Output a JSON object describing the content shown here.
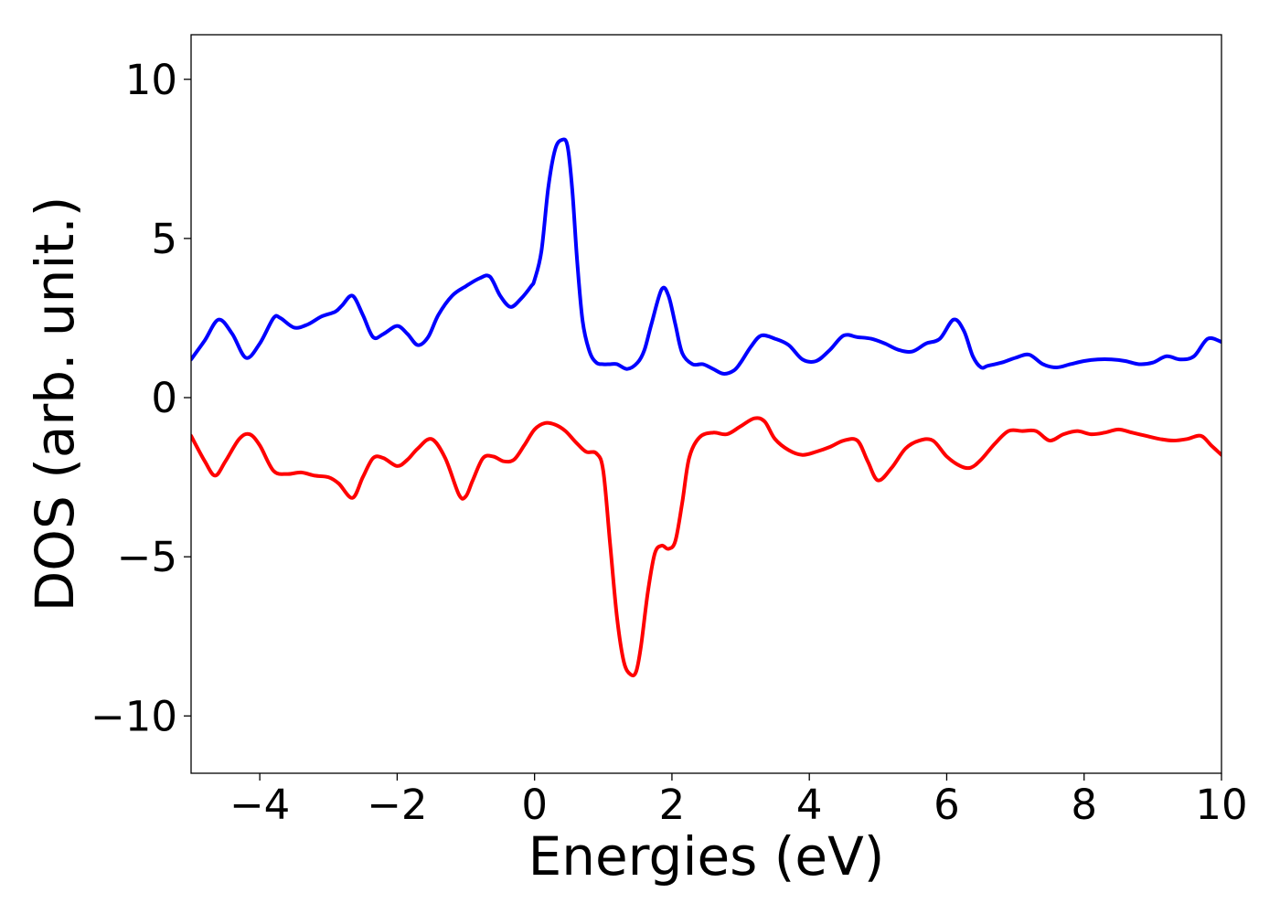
{
  "chart_data": {
    "type": "line",
    "title": "",
    "xlabel": "Energies (eV)",
    "ylabel": "DOS (arb. unit.)",
    "xlim": [
      -5,
      10
    ],
    "ylim": [
      -11.8,
      11.4
    ],
    "grid": false,
    "xticks": [
      -4,
      -2,
      0,
      2,
      4,
      6,
      8,
      10
    ],
    "xtick_labels": [
      "−4",
      "−2",
      "0",
      "2",
      "4",
      "6",
      "8",
      "10"
    ],
    "yticks": [
      10,
      5,
      0,
      -5,
      -10
    ],
    "ytick_labels": [
      "10",
      "5",
      "0",
      "−5",
      "−10"
    ],
    "series": [
      {
        "color": "#0000ff",
        "x": [
          -5.0,
          -4.8,
          -4.6,
          -4.4,
          -4.2,
          -4.0,
          -3.8,
          -3.7,
          -3.5,
          -3.3,
          -3.1,
          -2.9,
          -2.8,
          -2.65,
          -2.5,
          -2.35,
          -2.2,
          -2.0,
          -1.85,
          -1.7,
          -1.55,
          -1.4,
          -1.2,
          -1.0,
          -0.8,
          -0.65,
          -0.5,
          -0.35,
          -0.2,
          -0.05,
          0.0,
          0.1,
          0.2,
          0.3,
          0.4,
          0.48,
          0.55,
          0.62,
          0.7,
          0.8,
          0.9,
          1.0,
          1.1,
          1.2,
          1.35,
          1.5,
          1.6,
          1.7,
          1.85,
          1.95,
          2.05,
          2.15,
          2.3,
          2.45,
          2.6,
          2.75,
          2.9,
          3.0,
          3.15,
          3.3,
          3.5,
          3.7,
          3.9,
          4.1,
          4.3,
          4.5,
          4.7,
          4.9,
          5.1,
          5.3,
          5.5,
          5.7,
          5.9,
          6.1,
          6.25,
          6.38,
          6.5,
          6.6,
          6.8,
          7.0,
          7.2,
          7.4,
          7.6,
          7.8,
          8.0,
          8.2,
          8.4,
          8.6,
          8.8,
          9.0,
          9.2,
          9.4,
          9.6,
          9.8,
          10.0
        ],
        "y": [
          1.2,
          1.8,
          2.45,
          2.0,
          1.25,
          1.7,
          2.5,
          2.5,
          2.2,
          2.3,
          2.55,
          2.7,
          2.9,
          3.2,
          2.6,
          1.9,
          2.0,
          2.25,
          2.0,
          1.65,
          1.9,
          2.6,
          3.2,
          3.5,
          3.75,
          3.8,
          3.2,
          2.85,
          3.1,
          3.5,
          3.7,
          4.6,
          6.6,
          7.8,
          8.1,
          7.9,
          6.5,
          4.3,
          2.4,
          1.45,
          1.1,
          1.05,
          1.05,
          1.05,
          0.9,
          1.1,
          1.5,
          2.3,
          3.4,
          3.2,
          2.3,
          1.4,
          1.05,
          1.05,
          0.9,
          0.75,
          0.85,
          1.1,
          1.6,
          1.95,
          1.85,
          1.65,
          1.2,
          1.15,
          1.5,
          1.95,
          1.9,
          1.85,
          1.7,
          1.5,
          1.45,
          1.7,
          1.85,
          2.45,
          2.1,
          1.3,
          0.95,
          1.0,
          1.1,
          1.25,
          1.35,
          1.05,
          0.95,
          1.05,
          1.15,
          1.2,
          1.2,
          1.15,
          1.05,
          1.1,
          1.3,
          1.2,
          1.3,
          1.85,
          1.75
        ]
      },
      {
        "color": "#ff0000",
        "x": [
          -5.0,
          -4.8,
          -4.65,
          -4.5,
          -4.3,
          -4.15,
          -4.0,
          -3.8,
          -3.6,
          -3.4,
          -3.2,
          -3.0,
          -2.85,
          -2.65,
          -2.5,
          -2.35,
          -2.2,
          -2.0,
          -1.85,
          -1.7,
          -1.5,
          -1.3,
          -1.1,
          -1.0,
          -0.9,
          -0.75,
          -0.6,
          -0.45,
          -0.3,
          -0.15,
          0.0,
          0.15,
          0.3,
          0.45,
          0.6,
          0.75,
          0.9,
          1.0,
          1.1,
          1.2,
          1.3,
          1.4,
          1.48,
          1.55,
          1.65,
          1.75,
          1.85,
          1.95,
          2.05,
          2.15,
          2.25,
          2.4,
          2.6,
          2.8,
          3.0,
          3.2,
          3.35,
          3.5,
          3.7,
          3.9,
          4.1,
          4.3,
          4.5,
          4.7,
          4.85,
          5.0,
          5.2,
          5.4,
          5.6,
          5.8,
          6.0,
          6.2,
          6.35,
          6.5,
          6.7,
          6.9,
          7.1,
          7.3,
          7.5,
          7.7,
          7.9,
          8.1,
          8.3,
          8.5,
          8.7,
          8.9,
          9.1,
          9.3,
          9.5,
          9.7,
          9.85,
          10.0
        ],
        "y": [
          -1.2,
          -2.0,
          -2.45,
          -2.0,
          -1.3,
          -1.15,
          -1.5,
          -2.3,
          -2.4,
          -2.35,
          -2.45,
          -2.5,
          -2.7,
          -3.15,
          -2.5,
          -1.9,
          -1.9,
          -2.15,
          -1.95,
          -1.6,
          -1.3,
          -1.9,
          -3.05,
          -3.1,
          -2.6,
          -1.9,
          -1.85,
          -2.0,
          -1.95,
          -1.5,
          -1.0,
          -0.8,
          -0.85,
          -1.05,
          -1.4,
          -1.7,
          -1.75,
          -2.3,
          -4.6,
          -6.9,
          -8.3,
          -8.7,
          -8.6,
          -7.8,
          -6.1,
          -4.9,
          -4.65,
          -4.75,
          -4.5,
          -3.3,
          -1.9,
          -1.25,
          -1.1,
          -1.15,
          -0.9,
          -0.65,
          -0.75,
          -1.3,
          -1.65,
          -1.8,
          -1.7,
          -1.55,
          -1.35,
          -1.35,
          -2.0,
          -2.6,
          -2.2,
          -1.6,
          -1.35,
          -1.35,
          -1.85,
          -2.15,
          -2.2,
          -1.95,
          -1.45,
          -1.05,
          -1.05,
          -1.05,
          -1.35,
          -1.15,
          -1.05,
          -1.15,
          -1.1,
          -1.0,
          -1.1,
          -1.2,
          -1.3,
          -1.35,
          -1.3,
          -1.2,
          -1.5,
          -1.8
        ]
      }
    ]
  }
}
